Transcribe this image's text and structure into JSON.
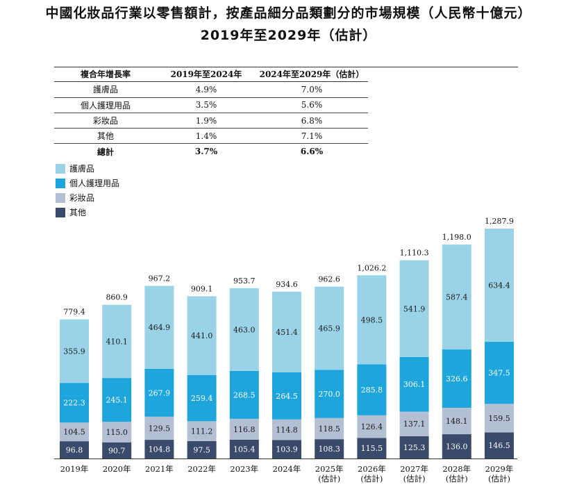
{
  "title_line1": "中國化妝品行業以零售額計，按產品細分品類劃分的市場規模（人民幣十億元）",
  "title_line2": "2019年至2029年（估計）",
  "cagr_table": {
    "headers": [
      "複合年增長率",
      "2019年至2024年",
      "2024年至2029年（估計）"
    ],
    "rows": [
      {
        "label": "護膚品",
        "v1": "4.9%",
        "v2": "7.0%"
      },
      {
        "label": "個人護理用品",
        "v1": "3.5%",
        "v2": "5.6%"
      },
      {
        "label": "彩妝品",
        "v1": "1.9%",
        "v2": "6.8%"
      },
      {
        "label": "其他",
        "v1": "1.4%",
        "v2": "7.1%"
      }
    ],
    "total": {
      "label": "總計",
      "v1": "3.7%",
      "v2": "6.6%"
    }
  },
  "chart_data": {
    "type": "bar",
    "stacked": true,
    "categories": [
      "2019年",
      "2020年",
      "2021年",
      "2022年",
      "2023年",
      "2024年",
      "2025年\n(估計)",
      "2026年\n(估計)",
      "2027年\n(估計)",
      "2028年\n(估計)",
      "2029年\n(估計)"
    ],
    "series": [
      {
        "name": "其他",
        "color": "#3a4a6b",
        "label_color": "#ffffff",
        "values": [
          96.8,
          90.7,
          104.8,
          97.5,
          105.4,
          103.9,
          108.3,
          115.5,
          125.3,
          136.0,
          146.5
        ]
      },
      {
        "name": "彩妝品",
        "color": "#b3bfd3",
        "label_color": "#1a1a1a",
        "values": [
          104.5,
          115.0,
          129.5,
          111.2,
          116.8,
          114.8,
          118.5,
          126.4,
          137.1,
          148.1,
          159.5
        ]
      },
      {
        "name": "個人護理用品",
        "color": "#1ea5dc",
        "label_color": "#ffffff",
        "values": [
          222.3,
          245.1,
          267.9,
          259.4,
          268.5,
          264.5,
          270.0,
          285.8,
          306.1,
          326.6,
          347.5
        ]
      },
      {
        "name": "護膚品",
        "color": "#9ad3e8",
        "label_color": "#1a1a1a",
        "values": [
          355.9,
          410.1,
          464.9,
          441.0,
          463.0,
          451.4,
          465.9,
          498.5,
          541.9,
          587.4,
          634.4
        ]
      }
    ],
    "totals": [
      "779.4",
      "860.9",
      "967.2",
      "909.1",
      "953.7",
      "934.6",
      "962.6",
      "1,026.2",
      "1,110.3",
      "1,198.0",
      "1,287.9"
    ],
    "legend_order": [
      "護膚品",
      "個人護理用品",
      "彩妝品",
      "其他"
    ],
    "legend_position": "top-left",
    "ylim": [
      0,
      1300
    ]
  }
}
